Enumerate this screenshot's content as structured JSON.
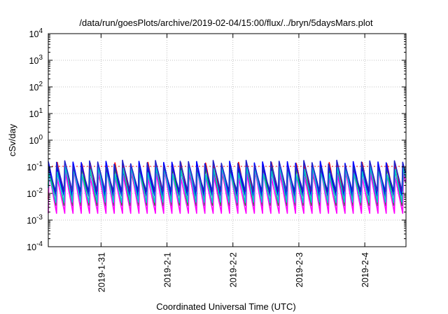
{
  "chart_data": {
    "type": "line",
    "title": "/data/run/goesPlots/archive/2019-02-04/15:00/flux/../bryn/5daysMars.plot",
    "xlabel": "Coordinated Universal Time (UTC)",
    "ylabel": "cSv/day",
    "yscale": "log",
    "ylim": [
      0.0001,
      10000
    ],
    "xlim": [
      "2019-01-30 04:48",
      "2019-02-04 15:00"
    ],
    "grid": true,
    "legend": "none",
    "x_ticks": [
      {
        "label": "2019-1-31",
        "x": "2019-01-31"
      },
      {
        "label": "2019-2-1",
        "x": "2019-02-01"
      },
      {
        "label": "2019-2-2",
        "x": "2019-02-02"
      },
      {
        "label": "2019-2-3",
        "x": "2019-02-03"
      },
      {
        "label": "2019-2-4",
        "x": "2019-02-04"
      }
    ],
    "y_ticks": [
      {
        "base": "10",
        "exp": "-4",
        "value": 0.0001
      },
      {
        "base": "10",
        "exp": "-3",
        "value": 0.001
      },
      {
        "base": "10",
        "exp": "-2",
        "value": 0.01
      },
      {
        "base": "10",
        "exp": "-1",
        "value": 0.1
      },
      {
        "base": "10",
        "exp": "0",
        "value": 1
      },
      {
        "base": "10",
        "exp": "1",
        "value": 10
      },
      {
        "base": "10",
        "exp": "2",
        "value": 100
      },
      {
        "base": "10",
        "exp": "3",
        "value": 1000
      },
      {
        "base": "10",
        "exp": "4",
        "value": 10000
      }
    ],
    "cycles_per_day": 8,
    "baseline": 0.105,
    "series": [
      {
        "color": "#ff0000",
        "peak": 0.11,
        "trough": 0.006
      },
      {
        "color": "#00aa00",
        "peak": 0.1,
        "trough": 0.003
      },
      {
        "color": "#0000ff",
        "peak": 0.12,
        "trough": 0.008
      },
      {
        "color": "#ff00ff",
        "peak": 0.06,
        "trough": 0.0018
      },
      {
        "color": "#00cccc",
        "peak": 0.09,
        "trough": 0.004
      },
      {
        "color": "#2222cc",
        "peak": 0.13,
        "trough": 0.012
      }
    ]
  }
}
